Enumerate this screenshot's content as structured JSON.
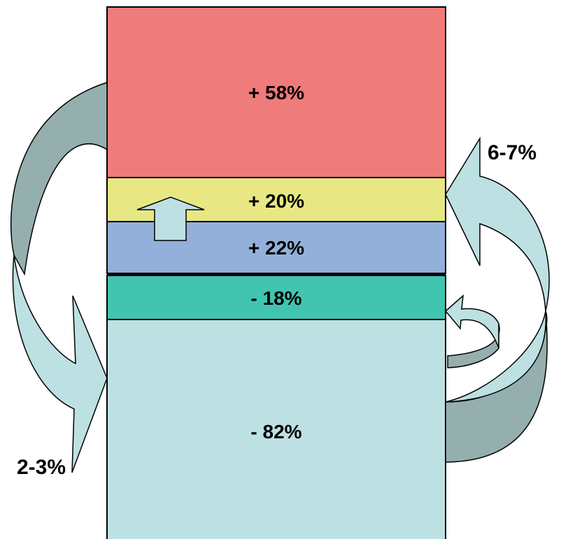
{
  "segments": [
    {
      "id": "seg-58",
      "label": "+ 58%",
      "color": "#f07b7b"
    },
    {
      "id": "seg-20",
      "label": "+ 20%",
      "color": "#e7e884"
    },
    {
      "id": "seg-22",
      "label": "+ 22%",
      "color": "#93b0da"
    },
    {
      "id": "seg-18",
      "label": "- 18%",
      "color": "#41c5b0"
    },
    {
      "id": "seg-82",
      "label": "- 82%",
      "color": "#bde0e3"
    }
  ],
  "flows": {
    "left_label": "2-3%",
    "right_label": "6-7%"
  },
  "colors": {
    "arrow_light": "#bde0e3",
    "arrow_dark": "#95afaf",
    "stroke": "#000000"
  }
}
